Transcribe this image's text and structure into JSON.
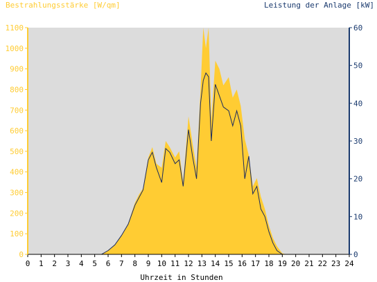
{
  "chart_data": {
    "type": "area",
    "left_axis_label": "Bestrahlungsstärke [W/qm]",
    "right_axis_label": "Leistung der Anlage [kW]",
    "xlabel": "Uhrzeit in Stunden",
    "xlim": [
      0,
      24
    ],
    "ylim_left": [
      0,
      1100
    ],
    "ylim_right": [
      0,
      60
    ],
    "x_ticks": [
      "0",
      "1",
      "2",
      "3",
      "4",
      "5",
      "6",
      "7",
      "8",
      "9",
      "10",
      "11",
      "12",
      "13",
      "14",
      "15",
      "16",
      "17",
      "18",
      "19",
      "20",
      "21",
      "22",
      "23",
      "24"
    ],
    "y_left_ticks": [
      "0",
      "100",
      "200",
      "300",
      "400",
      "500",
      "600",
      "700",
      "800",
      "900",
      "1000",
      "1100"
    ],
    "y_right_ticks": [
      "0",
      "10",
      "20",
      "30",
      "40",
      "50",
      "60"
    ],
    "colors": {
      "irradiance_fill": "#ffcc33",
      "power_line": "#1a2a5e",
      "plot_background": "#dcdcdc",
      "left_axis": "#ffcc33",
      "right_axis": "#1a3a6e",
      "text_left": "#ffcc33",
      "text_right": "#1a3a6e",
      "text_axis": "#000000"
    },
    "series": [
      {
        "name": "Bestrahlungsstärke [W/qm]",
        "axis": "left",
        "x": [
          0,
          5.5,
          6.0,
          6.5,
          7.0,
          7.5,
          8.0,
          8.3,
          8.6,
          9.0,
          9.3,
          9.6,
          10.0,
          10.3,
          10.6,
          11.0,
          11.3,
          11.6,
          12.0,
          12.3,
          12.6,
          12.9,
          13.1,
          13.3,
          13.5,
          13.7,
          14.0,
          14.3,
          14.6,
          15.0,
          15.3,
          15.6,
          15.9,
          16.2,
          16.5,
          16.8,
          17.1,
          17.4,
          17.7,
          18.0,
          18.3,
          18.6,
          19.0,
          19.3,
          24
        ],
        "values": [
          0,
          0,
          20,
          45,
          90,
          150,
          250,
          290,
          320,
          470,
          520,
          440,
          420,
          550,
          520,
          470,
          500,
          350,
          670,
          540,
          420,
          800,
          1100,
          1000,
          1100,
          650,
          940,
          900,
          820,
          860,
          760,
          800,
          720,
          560,
          480,
          330,
          370,
          280,
          220,
          140,
          80,
          40,
          5,
          0,
          0
        ]
      },
      {
        "name": "Leistung der Anlage [kW]",
        "axis": "right",
        "x": [
          0,
          5.5,
          6.0,
          6.5,
          7.0,
          7.5,
          8.0,
          8.3,
          8.6,
          9.0,
          9.3,
          9.6,
          10.0,
          10.3,
          10.6,
          11.0,
          11.3,
          11.6,
          12.0,
          12.3,
          12.6,
          12.9,
          13.1,
          13.3,
          13.5,
          13.7,
          14.0,
          14.3,
          14.6,
          15.0,
          15.3,
          15.6,
          15.9,
          16.2,
          16.5,
          16.8,
          17.1,
          17.4,
          17.7,
          18.0,
          18.3,
          18.6,
          19.0,
          19.3,
          24
        ],
        "values": [
          0,
          0,
          1,
          2.5,
          5,
          8,
          13,
          15,
          17,
          25,
          27,
          23,
          19,
          28,
          27,
          24,
          25,
          18,
          33,
          26,
          20,
          40,
          46,
          48,
          47,
          30,
          45,
          42,
          39,
          38,
          34,
          38,
          34,
          20,
          26,
          16,
          18,
          12,
          10,
          6,
          3,
          1,
          0,
          0,
          0
        ]
      }
    ]
  }
}
